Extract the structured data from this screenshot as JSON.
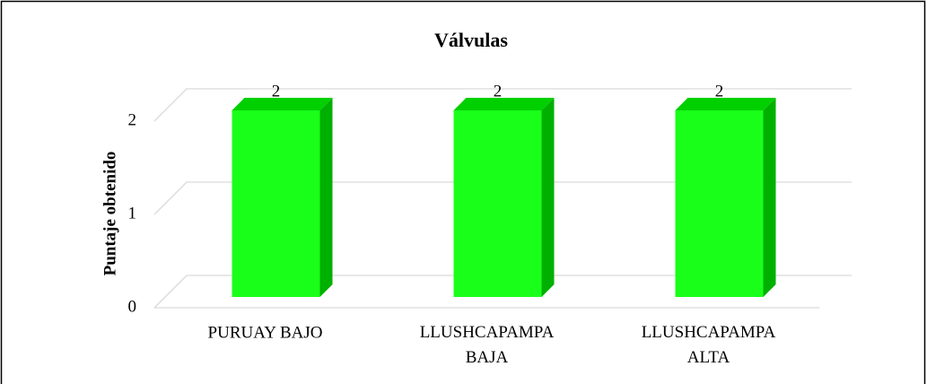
{
  "chart_data": {
    "type": "bar3d",
    "title": "Válvulas",
    "y_label": "Puntaje obtenido",
    "categories": [
      "PURUAY BAJO",
      "LLUSHCAPAMPA BAJA",
      "LLUSHCAPAMPA ALTA"
    ],
    "values": [
      2,
      2,
      2
    ],
    "color": "#1aff1a",
    "ylim": [
      0,
      2
    ],
    "yticks": [
      0,
      1,
      2
    ],
    "grid": true
  }
}
